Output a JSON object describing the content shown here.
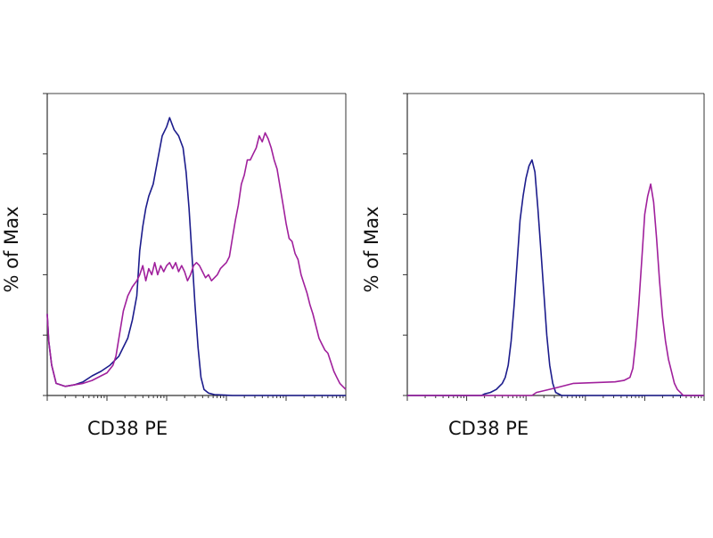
{
  "chart_data": [
    {
      "type": "line",
      "xlabel": "CD38 PE",
      "ylabel": "% of Max",
      "x_scale": "log",
      "y_scale": "linear",
      "xlim": [
        0,
        100
      ],
      "ylim": [
        0,
        100
      ],
      "legend": "none",
      "grid": false,
      "series": [
        {
          "color": "#1c1c8c",
          "points": [
            [
              0,
              27
            ],
            [
              0.5,
              18
            ],
            [
              1.5,
              10
            ],
            [
              3,
              4
            ],
            [
              6,
              3
            ],
            [
              9,
              3.5
            ],
            [
              12,
              4.5
            ],
            [
              15,
              6.5
            ],
            [
              18,
              8
            ],
            [
              21,
              10
            ],
            [
              24,
              13
            ],
            [
              27,
              19
            ],
            [
              28.5,
              25
            ],
            [
              30,
              33
            ],
            [
              31,
              48
            ],
            [
              32,
              56
            ],
            [
              33,
              62
            ],
            [
              34,
              66
            ],
            [
              35.5,
              70
            ],
            [
              37,
              78
            ],
            [
              38.5,
              86
            ],
            [
              40,
              89
            ],
            [
              41,
              92
            ],
            [
              42.5,
              88
            ],
            [
              44,
              86
            ],
            [
              45.5,
              82
            ],
            [
              46.5,
              74
            ],
            [
              47.5,
              62
            ],
            [
              48.5,
              46
            ],
            [
              49.5,
              30
            ],
            [
              50.5,
              16
            ],
            [
              51.5,
              6
            ],
            [
              52.5,
              2
            ],
            [
              54,
              0.8
            ],
            [
              56,
              0.3
            ],
            [
              62,
              0
            ],
            [
              100,
              0
            ]
          ]
        },
        {
          "color": "#a0209c",
          "points": [
            [
              0,
              27
            ],
            [
              0.5,
              18
            ],
            [
              1.5,
              10
            ],
            [
              3,
              4
            ],
            [
              6,
              3
            ],
            [
              9,
              3.5
            ],
            [
              12,
              4
            ],
            [
              15,
              5
            ],
            [
              18,
              6.5
            ],
            [
              20,
              7.5
            ],
            [
              22,
              10
            ],
            [
              23,
              13
            ],
            [
              24,
              19
            ],
            [
              25.5,
              28
            ],
            [
              27,
              33
            ],
            [
              28.5,
              36
            ],
            [
              30,
              38
            ],
            [
              31,
              40
            ],
            [
              32,
              43
            ],
            [
              33,
              38
            ],
            [
              34,
              42
            ],
            [
              35,
              40
            ],
            [
              36,
              44
            ],
            [
              37,
              40
            ],
            [
              38,
              43
            ],
            [
              39,
              41
            ],
            [
              40,
              43
            ],
            [
              41,
              44
            ],
            [
              42,
              42
            ],
            [
              43,
              44
            ],
            [
              44,
              41
            ],
            [
              45,
              43
            ],
            [
              46,
              41
            ],
            [
              47,
              38
            ],
            [
              48,
              40
            ],
            [
              49,
              43
            ],
            [
              50,
              44
            ],
            [
              51,
              43
            ],
            [
              52,
              41
            ],
            [
              53,
              39
            ],
            [
              54,
              40
            ],
            [
              55,
              38
            ],
            [
              56,
              39
            ],
            [
              57,
              40
            ],
            [
              58,
              42
            ],
            [
              59,
              43
            ],
            [
              60,
              44
            ],
            [
              61,
              46
            ],
            [
              62,
              52
            ],
            [
              63,
              58
            ],
            [
              64,
              63
            ],
            [
              65,
              70
            ],
            [
              66,
              73
            ],
            [
              67,
              78
            ],
            [
              68,
              78
            ],
            [
              69,
              80
            ],
            [
              70,
              82
            ],
            [
              71,
              86
            ],
            [
              72,
              84
            ],
            [
              73,
              87
            ],
            [
              74,
              85
            ],
            [
              75,
              82
            ],
            [
              76,
              78
            ],
            [
              77,
              75
            ],
            [
              78,
              69
            ],
            [
              79,
              63
            ],
            [
              80,
              57
            ],
            [
              81,
              52
            ],
            [
              82,
              51
            ],
            [
              83,
              47
            ],
            [
              84,
              45
            ],
            [
              85,
              40
            ],
            [
              86,
              37
            ],
            [
              87,
              34
            ],
            [
              88,
              30
            ],
            [
              89,
              27
            ],
            [
              90,
              23
            ],
            [
              91,
              19
            ],
            [
              92,
              17
            ],
            [
              93,
              15
            ],
            [
              94,
              14
            ],
            [
              95,
              11
            ],
            [
              96,
              8
            ],
            [
              97,
              6
            ],
            [
              98,
              4
            ],
            [
              99,
              3
            ],
            [
              100,
              2
            ]
          ]
        }
      ]
    },
    {
      "type": "line",
      "xlabel": "CD38 PE",
      "ylabel": "% of Max",
      "x_scale": "log",
      "y_scale": "linear",
      "xlim": [
        0,
        100
      ],
      "ylim": [
        0,
        100
      ],
      "legend": "none",
      "grid": false,
      "series": [
        {
          "color": "#1c1c8c",
          "points": [
            [
              0,
              0
            ],
            [
              25,
              0
            ],
            [
              26,
              0.5
            ],
            [
              28,
              1
            ],
            [
              30,
              2
            ],
            [
              31,
              3
            ],
            [
              32,
              4
            ],
            [
              33,
              6
            ],
            [
              34,
              10
            ],
            [
              35,
              18
            ],
            [
              36,
              30
            ],
            [
              37,
              44
            ],
            [
              38,
              58
            ],
            [
              39,
              66
            ],
            [
              40,
              72
            ],
            [
              41,
              76
            ],
            [
              42,
              78
            ],
            [
              43,
              74
            ],
            [
              44,
              62
            ],
            [
              45,
              48
            ],
            [
              46,
              34
            ],
            [
              47,
              20
            ],
            [
              48,
              10
            ],
            [
              49,
              4
            ],
            [
              50,
              1
            ],
            [
              52,
              0
            ],
            [
              100,
              0
            ]
          ]
        },
        {
          "color": "#a0209c",
          "points": [
            [
              0,
              0
            ],
            [
              42,
              0
            ],
            [
              43.5,
              1
            ],
            [
              50,
              2.5
            ],
            [
              56,
              4
            ],
            [
              70,
              4.5
            ],
            [
              73,
              5
            ],
            [
              75,
              6
            ],
            [
              76,
              9
            ],
            [
              77,
              18
            ],
            [
              78,
              30
            ],
            [
              79,
              45
            ],
            [
              80,
              60
            ],
            [
              81,
              66
            ],
            [
              82,
              70
            ],
            [
              83,
              64
            ],
            [
              84,
              52
            ],
            [
              85,
              38
            ],
            [
              86,
              26
            ],
            [
              87,
              18
            ],
            [
              88,
              12
            ],
            [
              89,
              8
            ],
            [
              90,
              4
            ],
            [
              91,
              2
            ],
            [
              92,
              1
            ],
            [
              93,
              0
            ],
            [
              100,
              0
            ]
          ]
        }
      ]
    }
  ]
}
